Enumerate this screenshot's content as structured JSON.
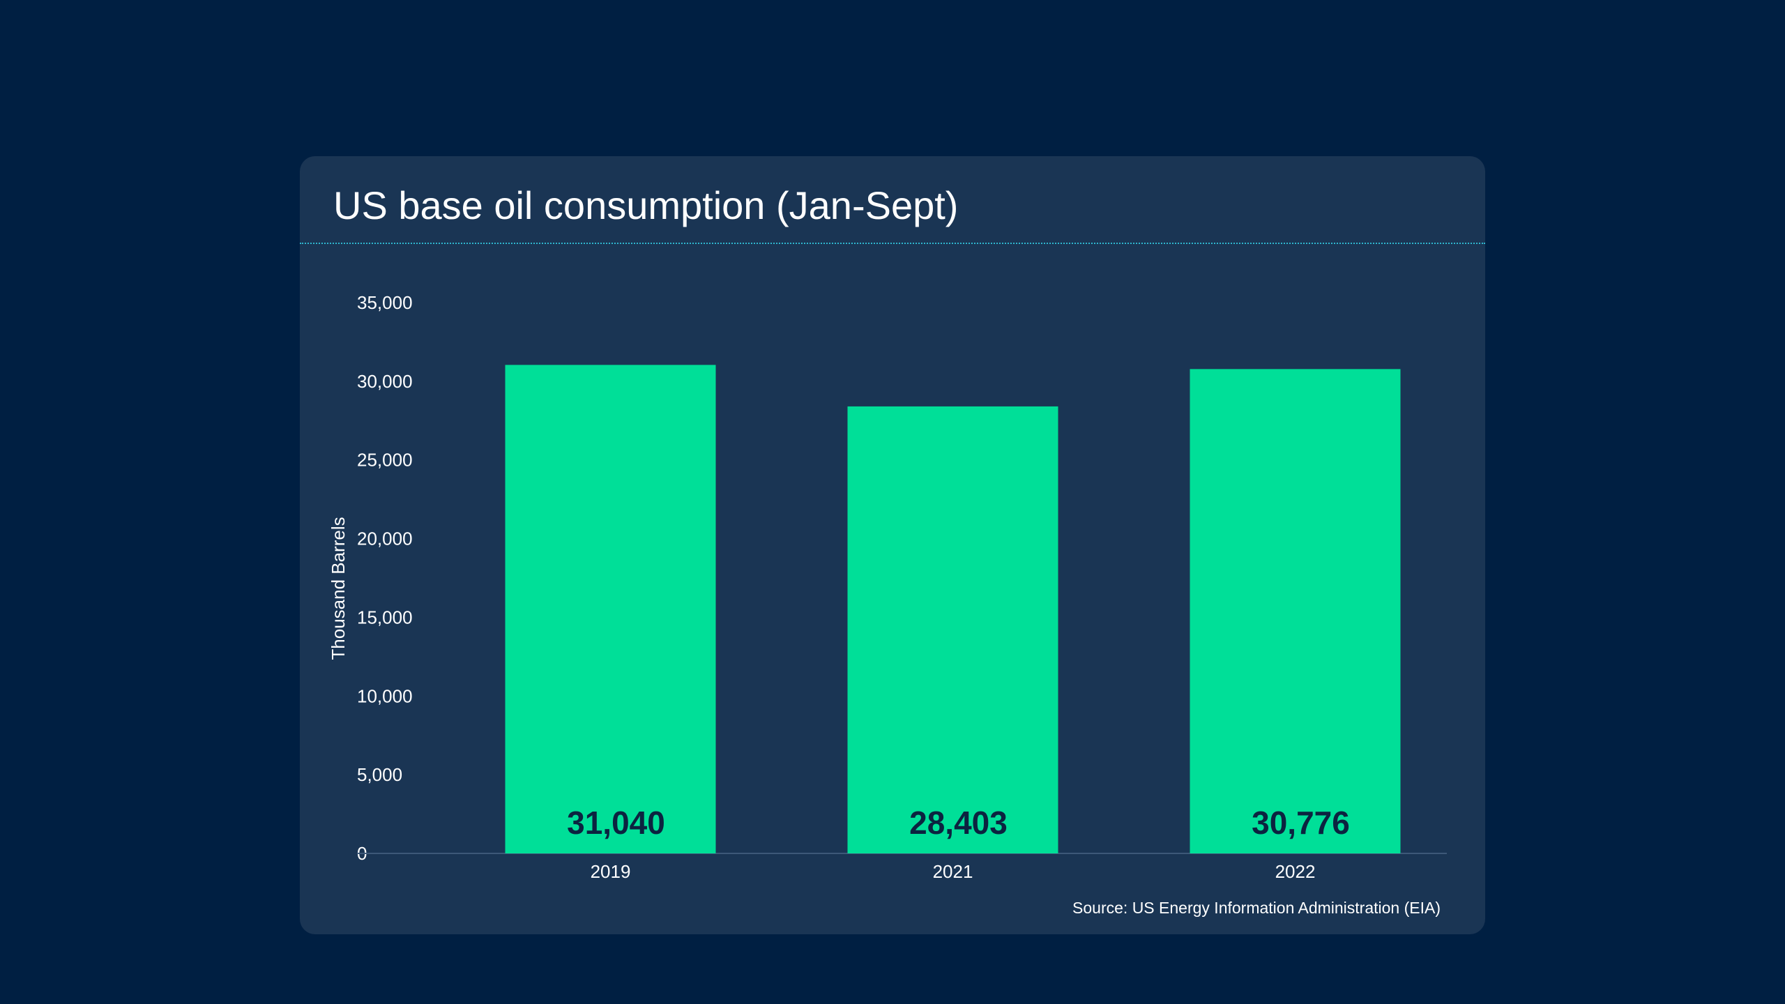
{
  "colors": {
    "background": "#001f42",
    "card": "#1a3554",
    "bar": "#00df98",
    "value_text": "#0c2340",
    "divider": "#2fb6cf"
  },
  "chart_data": {
    "type": "bar",
    "title": "US base oil consumption (Jan-Sept)",
    "xlabel": "",
    "ylabel": "Thousand Barrels",
    "categories": [
      "2019",
      "2021",
      "2022"
    ],
    "values": [
      31040,
      28403,
      30776
    ],
    "value_labels": [
      "31,040",
      "28,403",
      "30,776"
    ],
    "ylim": [
      0,
      35000
    ],
    "yticks": [
      0,
      5000,
      10000,
      15000,
      20000,
      25000,
      30000,
      35000
    ],
    "ytick_labels": [
      "0",
      "5,000",
      "10,000",
      "15,000",
      "20,000",
      "25,000",
      "30,000",
      "35,000"
    ],
    "grid": false,
    "legend": "none",
    "source": "Source: US Energy Information Administration (EIA)"
  }
}
